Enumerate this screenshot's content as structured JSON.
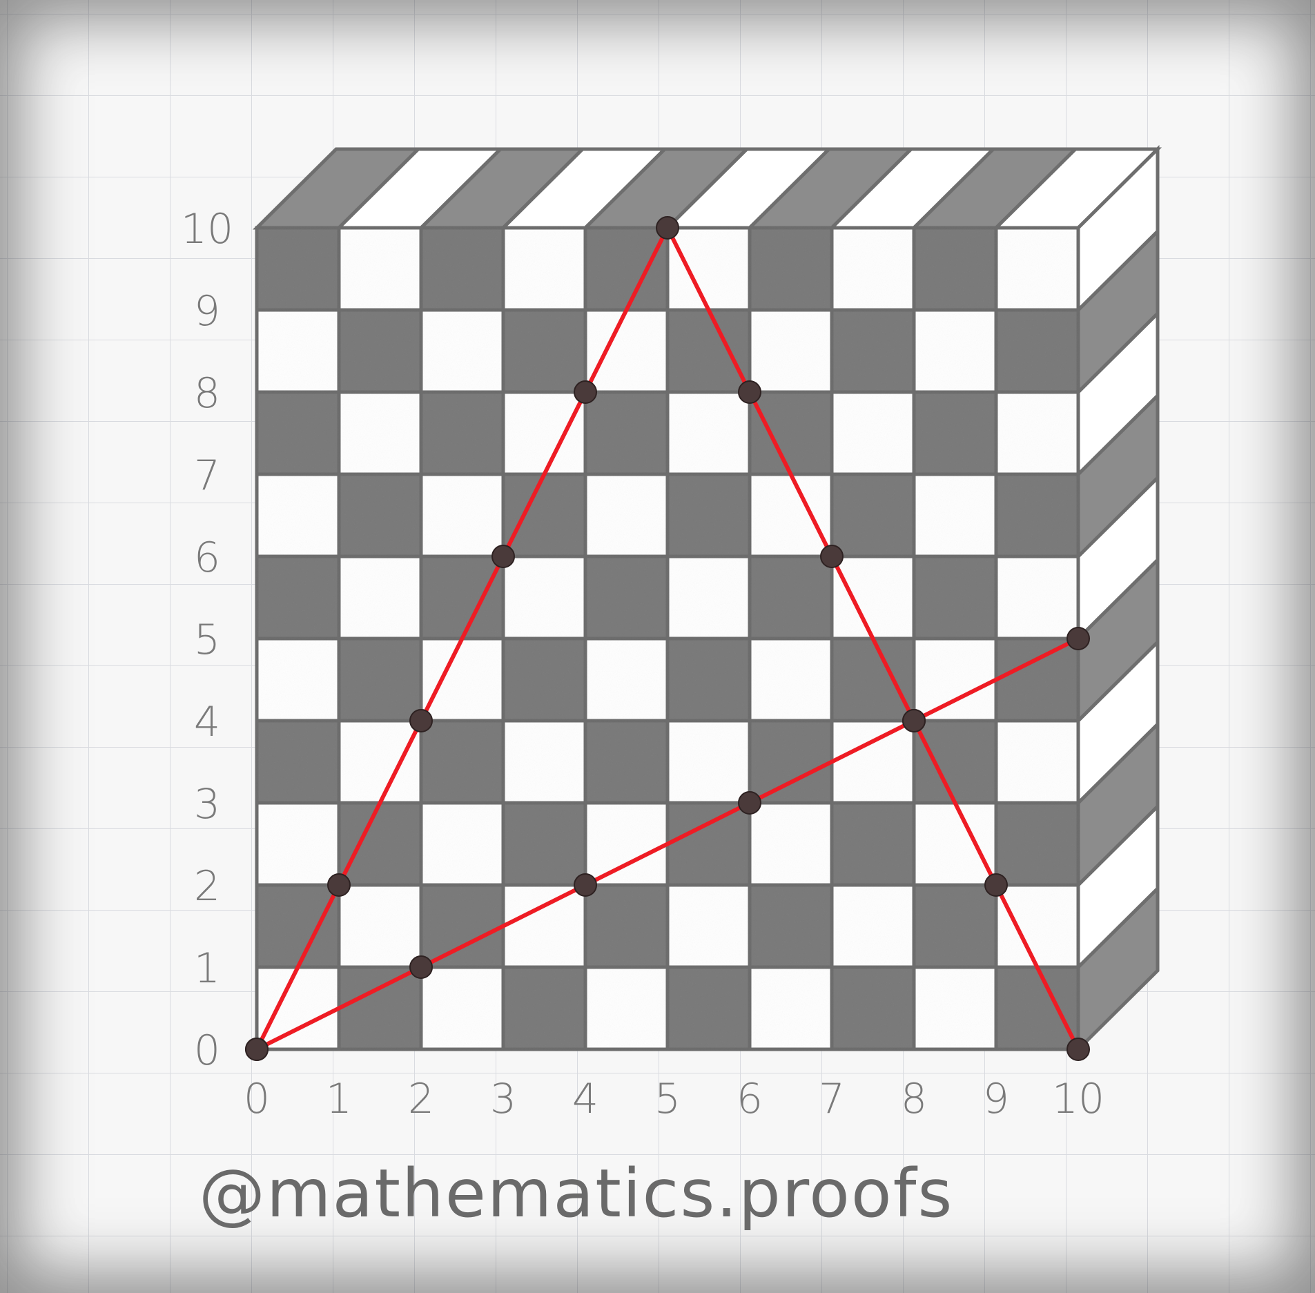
{
  "chart_data": {
    "type": "line",
    "xlim": [
      0,
      10
    ],
    "ylim": [
      0,
      10
    ],
    "x_ticks": [
      "0",
      "1",
      "2",
      "3",
      "4",
      "5",
      "6",
      "7",
      "8",
      "9",
      "10"
    ],
    "y_ticks": [
      "0",
      "1",
      "2",
      "3",
      "4",
      "5",
      "6",
      "7",
      "8",
      "9",
      "10"
    ],
    "background": "3D checkerboard block, 10 x 10 squares",
    "series": [
      {
        "points": [
          [
            0,
            0
          ],
          [
            5,
            10
          ],
          [
            10,
            0
          ]
        ],
        "marked": [
          [
            0,
            0
          ],
          [
            1,
            2
          ],
          [
            2,
            4
          ],
          [
            3,
            6
          ],
          [
            4,
            8
          ],
          [
            5,
            10
          ],
          [
            6,
            8
          ],
          [
            7,
            6
          ],
          [
            8,
            4
          ],
          [
            9,
            2
          ],
          [
            10,
            0
          ]
        ]
      },
      {
        "points": [
          [
            0,
            0
          ],
          [
            10,
            5
          ]
        ],
        "marked": [
          [
            0,
            0
          ],
          [
            2,
            1
          ],
          [
            4,
            2
          ],
          [
            6,
            3
          ],
          [
            8,
            4
          ],
          [
            10,
            5
          ]
        ]
      }
    ],
    "line_color": "#ee1c24",
    "point_color": "#4a3a3a"
  },
  "colors": {
    "dark_square": "#7c7c7c",
    "light_square": "#ffffff",
    "side_face": "#8c8c8c",
    "grid_line": "#6e6e6e"
  },
  "watermark": "@mathematics.proofs"
}
